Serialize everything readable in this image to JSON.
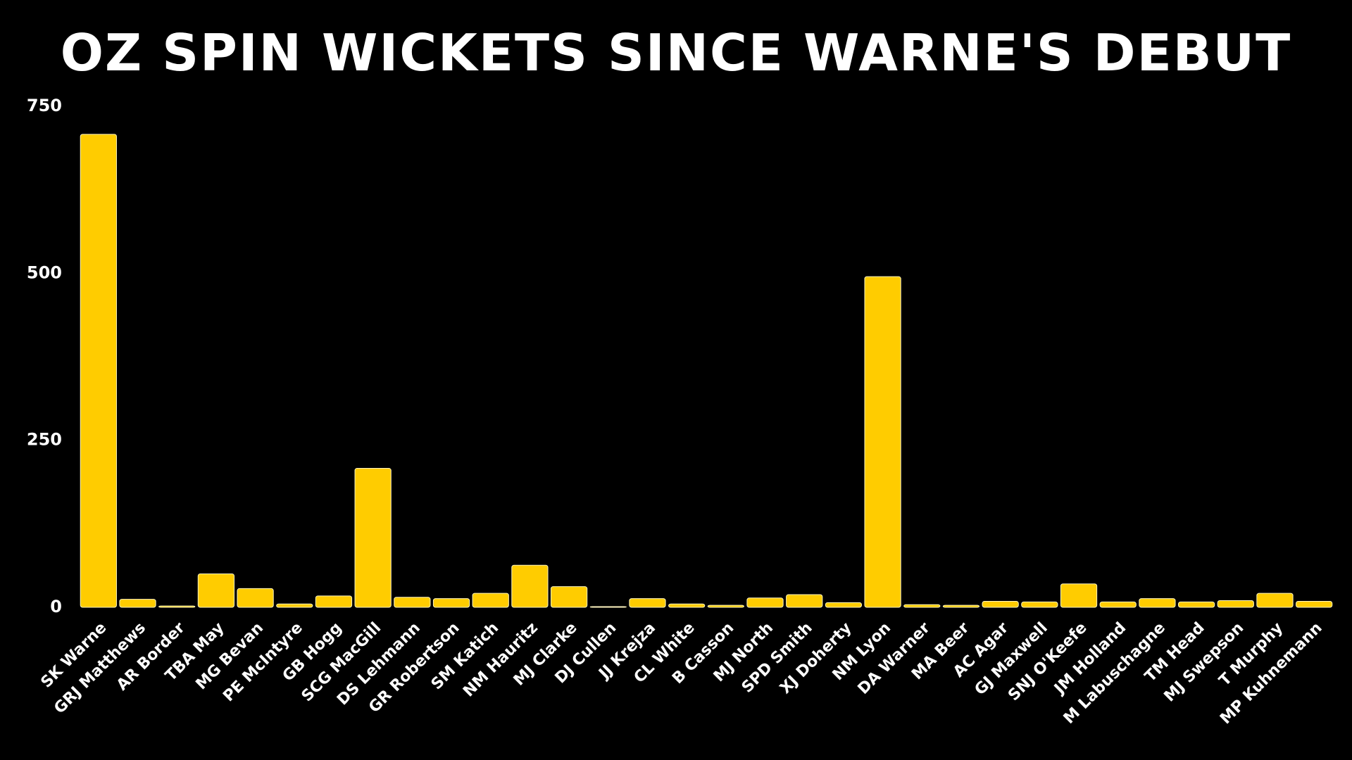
{
  "chart_data": {
    "type": "bar",
    "title": "OZ SPIN WICKETS SINCE WARNE'S DEBUT",
    "categories": [
      "SK Warne",
      "GRJ Matthews",
      "AR Border",
      "TBA May",
      "MG Bevan",
      "PE McIntyre",
      "GB Hogg",
      "SCG MacGill",
      "DS Lehmann",
      "GR Robertson",
      "SM Katich",
      "NM Hauritz",
      "MJ Clarke",
      "DJ Cullen",
      "JJ Krejza",
      "CL White",
      "B Casson",
      "MJ North",
      "SPD Smith",
      "XJ Doherty",
      "NM Lyon",
      "DA Warner",
      "MA Beer",
      "AC Agar",
      "GJ Maxwell",
      "SNJ O'Keefe",
      "JM Holland",
      "M Labuschagne",
      "TM Head",
      "MJ Swepson",
      "T Murphy",
      "MP Kuhnemann"
    ],
    "values": [
      708,
      12,
      2,
      50,
      28,
      5,
      17,
      208,
      15,
      13,
      21,
      63,
      31,
      1,
      13,
      5,
      3,
      14,
      19,
      7,
      495,
      4,
      3,
      9,
      8,
      35,
      8,
      13,
      8,
      10,
      21,
      9
    ],
    "color": "#ffcc00",
    "ylim": [
      0,
      750
    ],
    "yticks": [
      0,
      250,
      500,
      750
    ],
    "grid": false
  }
}
